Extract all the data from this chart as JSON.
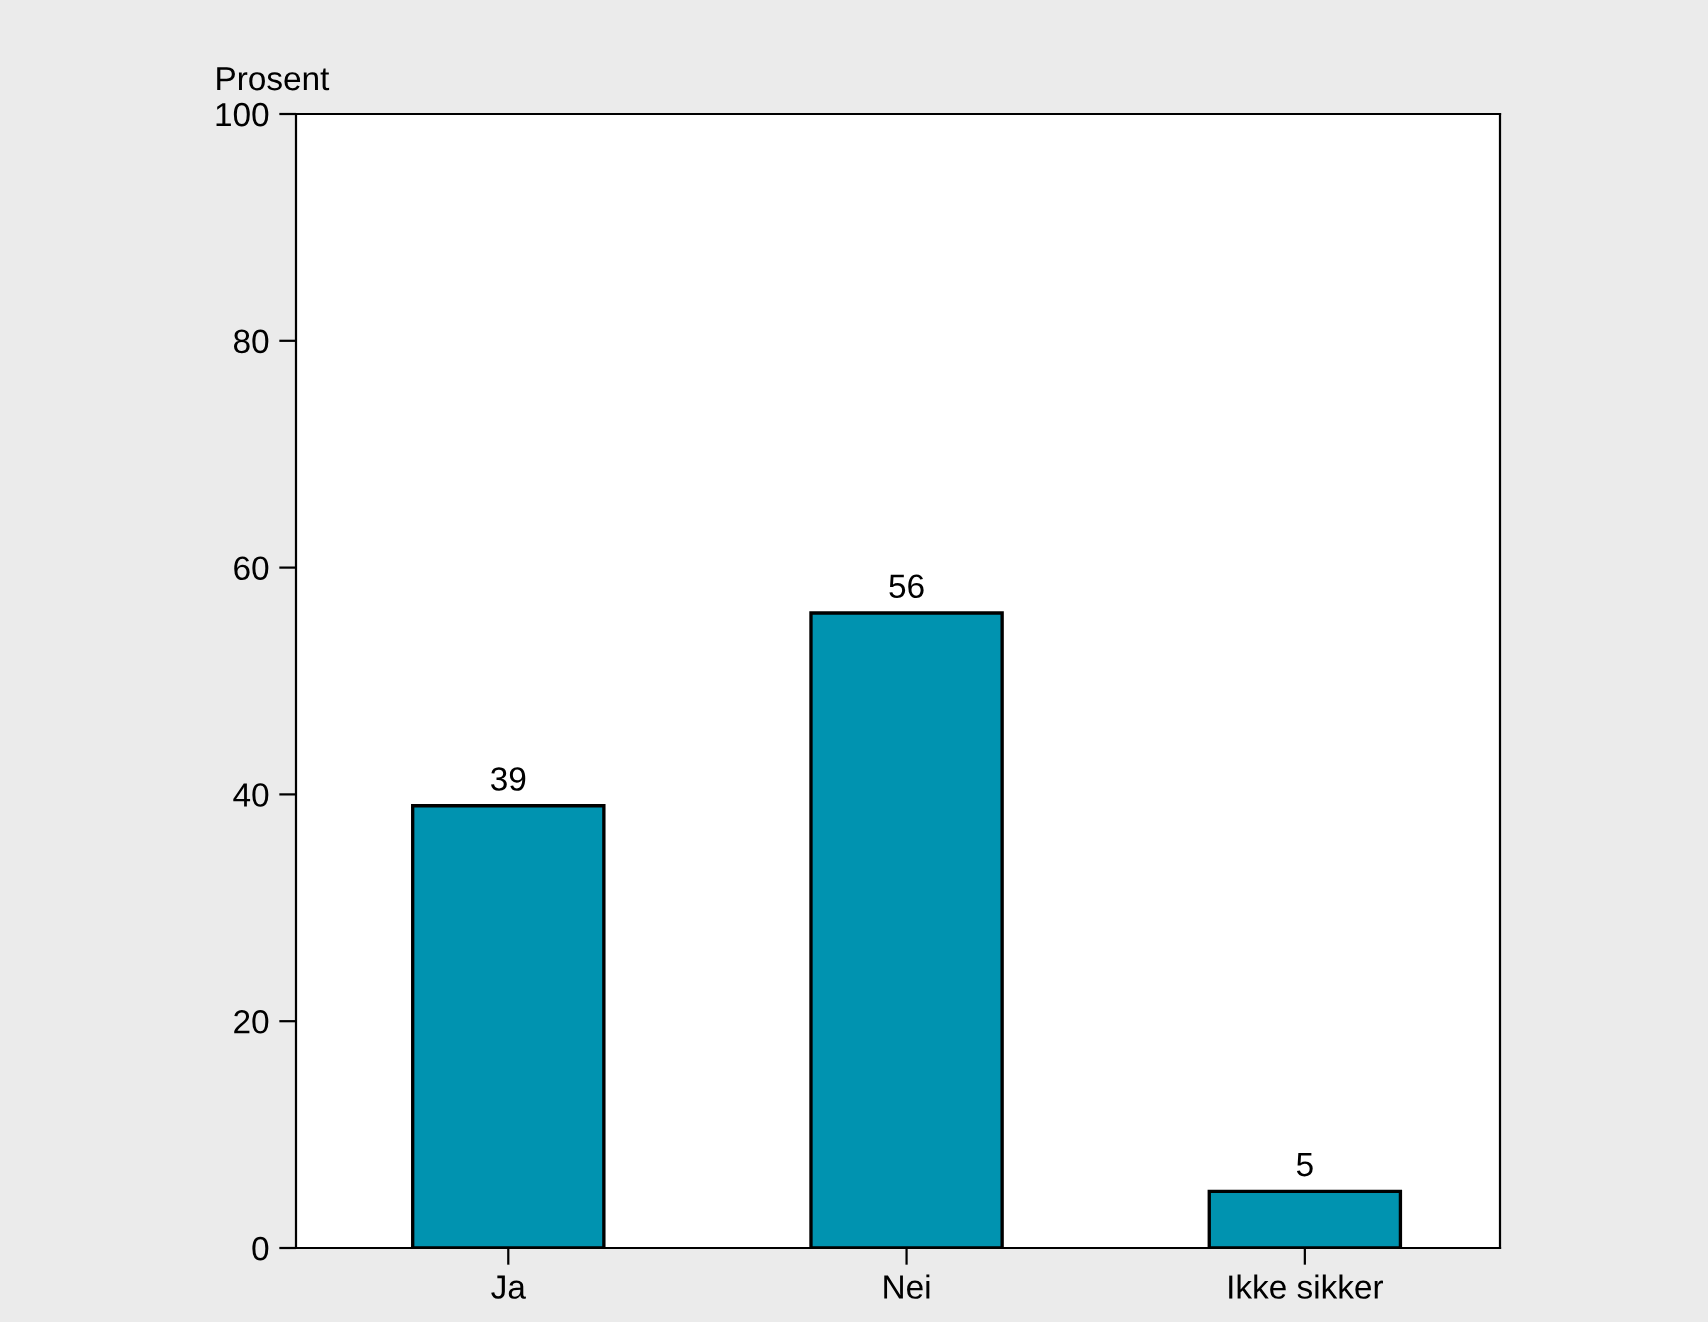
{
  "chart_data": {
    "type": "bar",
    "ylabel": "Prosent",
    "categories": [
      "Ja",
      "Nei",
      "Ikke sikker"
    ],
    "values": [
      39,
      56,
      5
    ],
    "color": "#0093b0",
    "ylim": [
      0,
      100
    ],
    "yticks": [
      0,
      20,
      40,
      60,
      80,
      100
    ],
    "data_labels": true,
    "grid": false
  }
}
